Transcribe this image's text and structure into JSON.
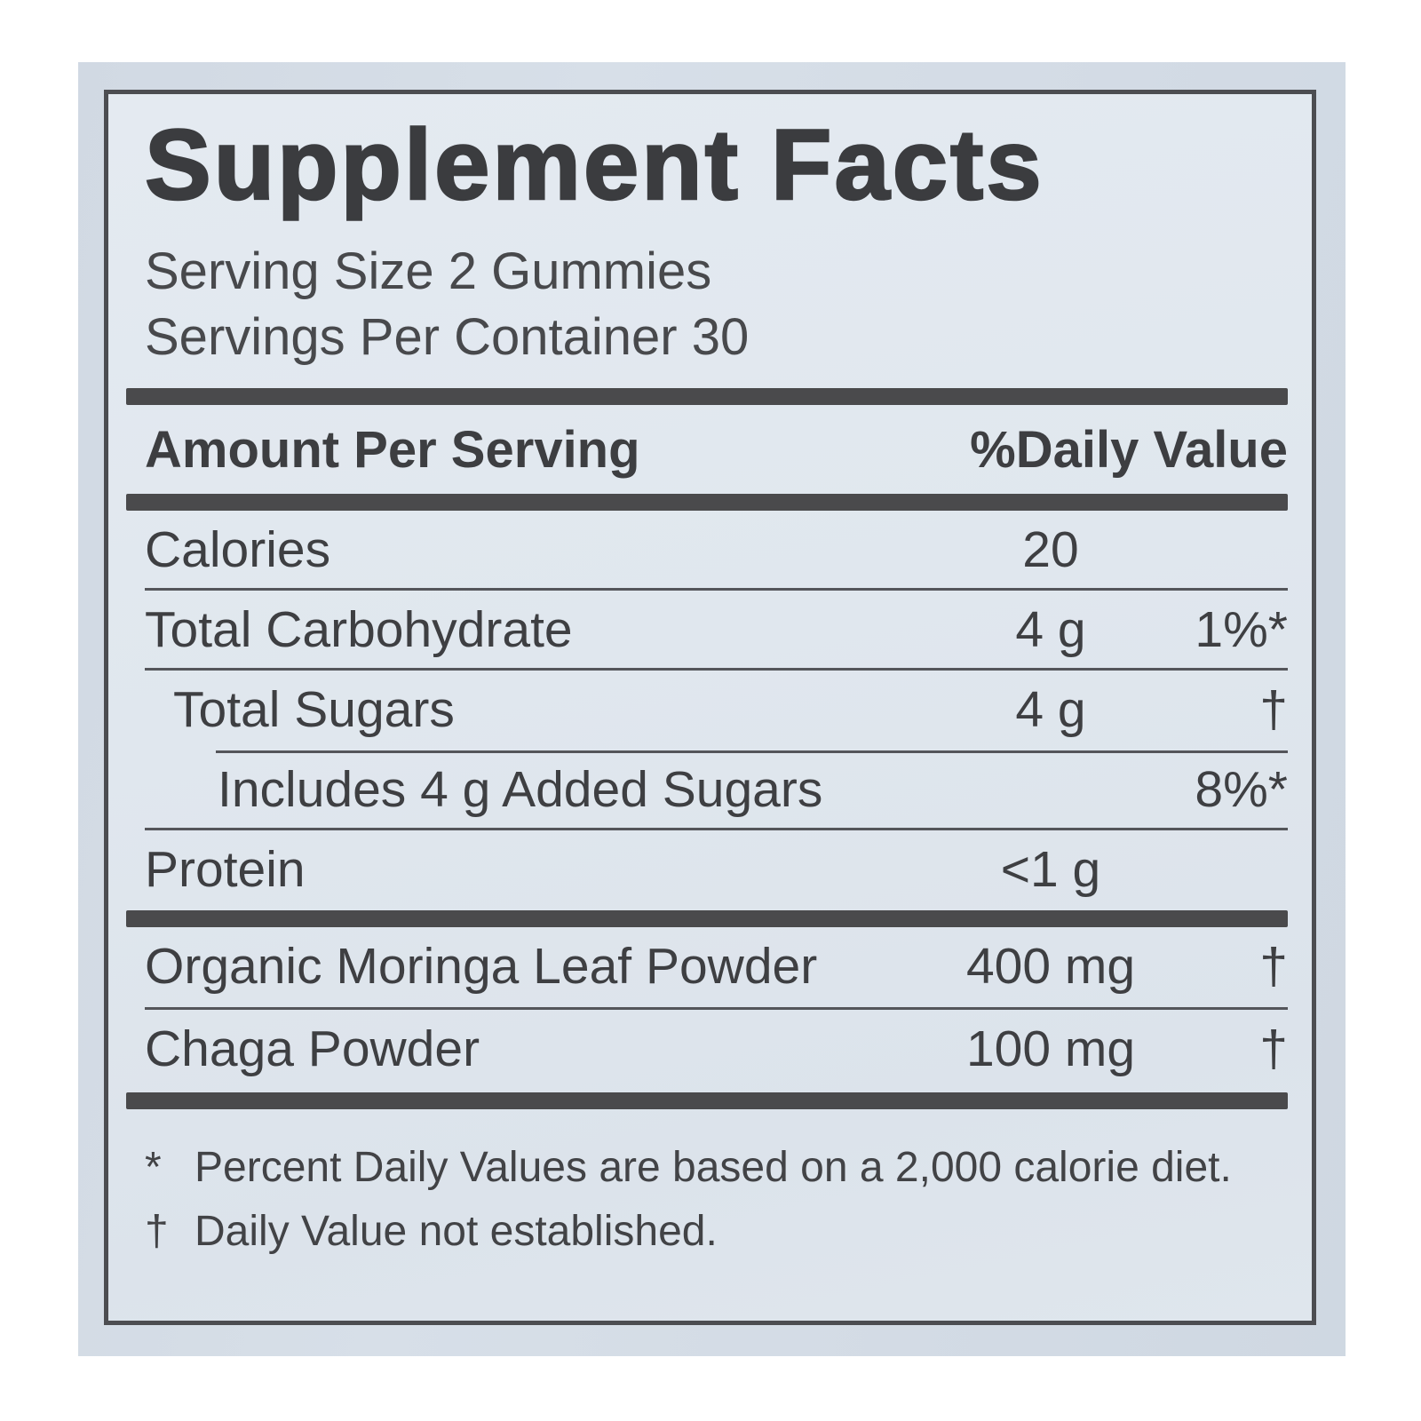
{
  "label": {
    "title": "Supplement Facts",
    "serving_size": "Serving Size 2 Gummies",
    "servings_per_container": "Servings Per Container 30",
    "header": {
      "amount_col": "Amount Per Serving",
      "dv_col": "%Daily Value"
    },
    "rows": [
      {
        "name": "Calories",
        "amount": "20",
        "dv": ""
      },
      {
        "name": "Total Carbohydrate",
        "amount": "4 g",
        "dv": "1%*"
      },
      {
        "name": "Total Sugars",
        "amount": "4 g",
        "dv": "†"
      },
      {
        "name": "Includes 4 g Added Sugars",
        "amount": "",
        "dv": "8%*"
      },
      {
        "name": "Protein",
        "amount": "<1 g",
        "dv": ""
      }
    ],
    "ingredient_rows": [
      {
        "name": "Organic Moringa Leaf Powder",
        "amount": "400 mg",
        "dv": "†"
      },
      {
        "name": "Chaga Powder",
        "amount": "100 mg",
        "dv": "†"
      }
    ],
    "footnotes": [
      {
        "symbol": "*",
        "text": "Percent Daily Values are based on a 2,000 calorie diet."
      },
      {
        "symbol": "†",
        "text": "Daily Value not established."
      }
    ],
    "colors": {
      "page_bg": "#ffffff",
      "photo_bg": "#d3dbe5",
      "label_bg": "#e0e7ee",
      "ink": "#3e3f42",
      "divider_bar": "#4a4a4c",
      "thin_rule": "#54555a",
      "border": "#4c4d51"
    }
  }
}
